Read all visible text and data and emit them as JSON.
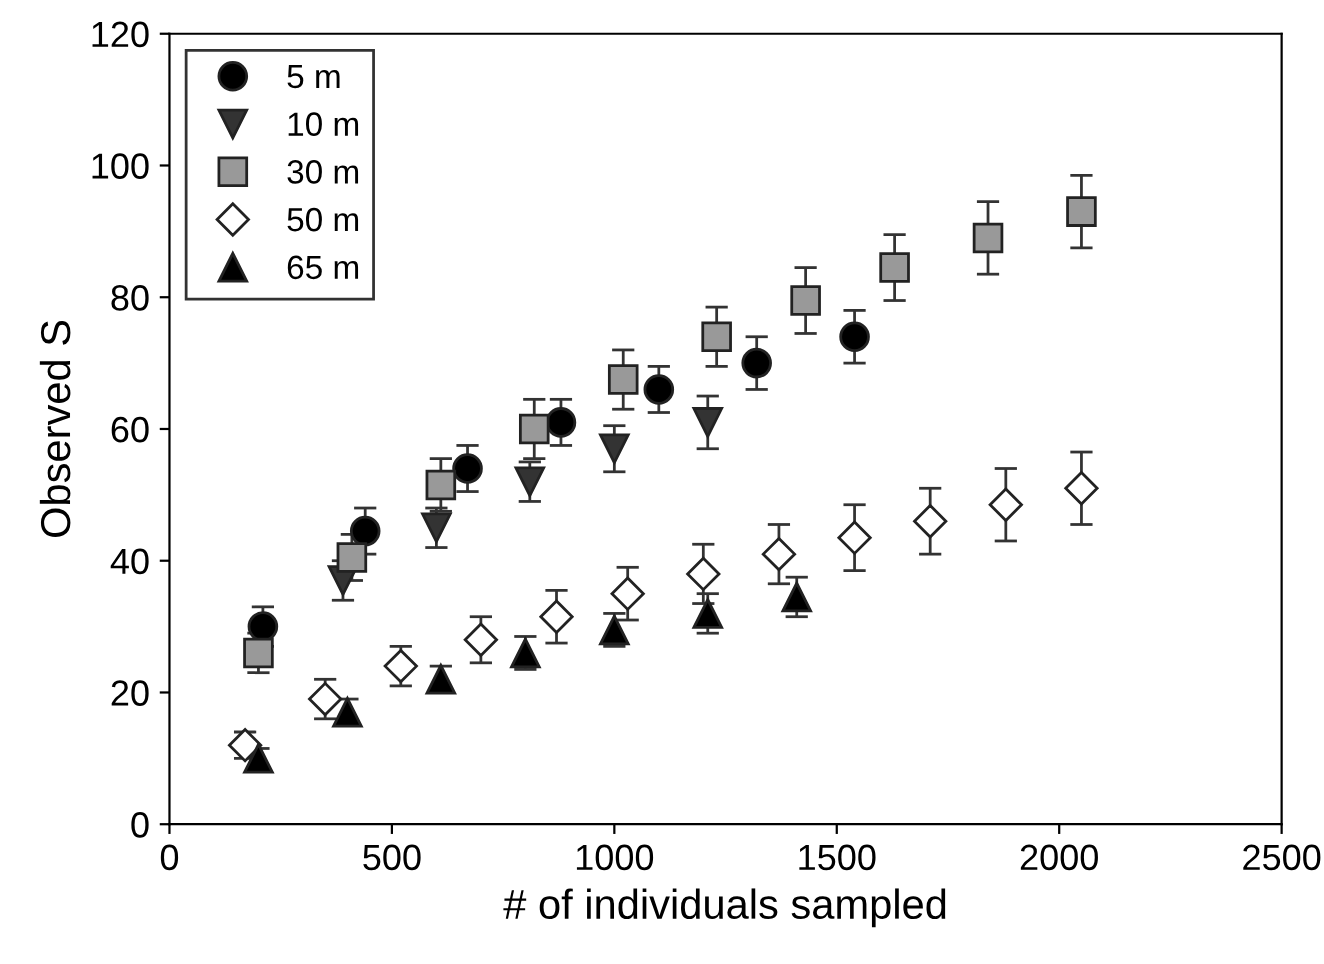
{
  "chart_data": {
    "type": "scatter",
    "xlabel": "# of individuals sampled",
    "ylabel": "Observed S",
    "xlim": [
      0,
      2500
    ],
    "xticks": [
      0,
      500,
      1000,
      1500,
      2000,
      2500
    ],
    "ylim": [
      0,
      120
    ],
    "yticks": [
      0,
      20,
      40,
      60,
      80,
      100,
      120
    ],
    "grid": false,
    "legend": "top left",
    "series": [
      {
        "name": "5 m",
        "color": "#000000",
        "marker": "circle",
        "x": [
          210,
          440,
          670,
          880,
          1100,
          1320,
          1540
        ],
        "values": [
          30,
          44.5,
          54,
          61,
          66,
          70,
          74
        ],
        "errors": [
          3,
          3.5,
          3.5,
          3.5,
          3.5,
          4,
          4
        ]
      },
      {
        "name": "10 m",
        "color": "#333333",
        "marker": "triangle_down",
        "x": [
          390,
          600,
          810,
          1000,
          1210
        ],
        "values": [
          37,
          45,
          52,
          57,
          61
        ],
        "errors": [
          3,
          3,
          3,
          3.5,
          4
        ]
      },
      {
        "name": "30 m",
        "color": "#999999",
        "marker": "square",
        "x": [
          200,
          410,
          610,
          820,
          1020,
          1230,
          1430,
          1630,
          1840,
          2050
        ],
        "values": [
          26,
          40.5,
          51.5,
          60,
          67.5,
          74,
          79.5,
          84.5,
          89,
          93
        ],
        "errors": [
          3,
          3.5,
          4,
          4.5,
          4.5,
          4.5,
          5,
          5,
          5.5,
          5.5
        ]
      },
      {
        "name": "50 m",
        "color": "#ffffff",
        "marker": "diamond",
        "x": [
          170,
          350,
          520,
          700,
          870,
          1030,
          1200,
          1370,
          1540,
          1710,
          1880,
          2050
        ],
        "values": [
          12,
          19,
          24,
          28,
          31.5,
          35,
          38,
          41,
          43.5,
          46,
          48.5,
          51
        ],
        "errors": [
          2,
          3,
          3,
          3.5,
          4,
          4,
          4.5,
          4.5,
          5,
          5,
          5.5,
          5.5
        ]
      },
      {
        "name": "65 m",
        "color": "#000000",
        "marker": "triangle",
        "x": [
          200,
          400,
          610,
          800,
          1000,
          1210,
          1410
        ],
        "values": [
          10,
          17,
          22,
          26,
          29.5,
          32,
          34.5
        ],
        "errors": [
          1.5,
          2,
          2,
          2.5,
          2.5,
          3,
          3
        ]
      }
    ]
  }
}
